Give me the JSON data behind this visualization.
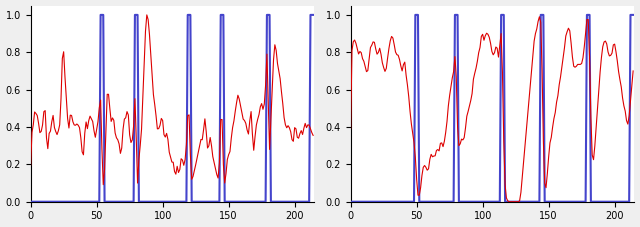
{
  "xlim": [
    0,
    215
  ],
  "ylim": [
    0.0,
    1.05
  ],
  "x_ticks": [
    0,
    50,
    100,
    150,
    200
  ],
  "y_ticks": [
    0.0,
    0.2,
    0.4,
    0.6,
    0.8,
    1.0
  ],
  "blue_spikes_left": [
    54,
    80,
    120,
    145,
    180,
    213
  ],
  "blue_spikes_right": [
    50,
    80,
    115,
    145,
    180,
    213
  ],
  "blue_color": "#4444cc",
  "red_color": "#dd0000",
  "fig_bg": "#efefef",
  "ax_bg": "#ffffff",
  "n_points": 215
}
